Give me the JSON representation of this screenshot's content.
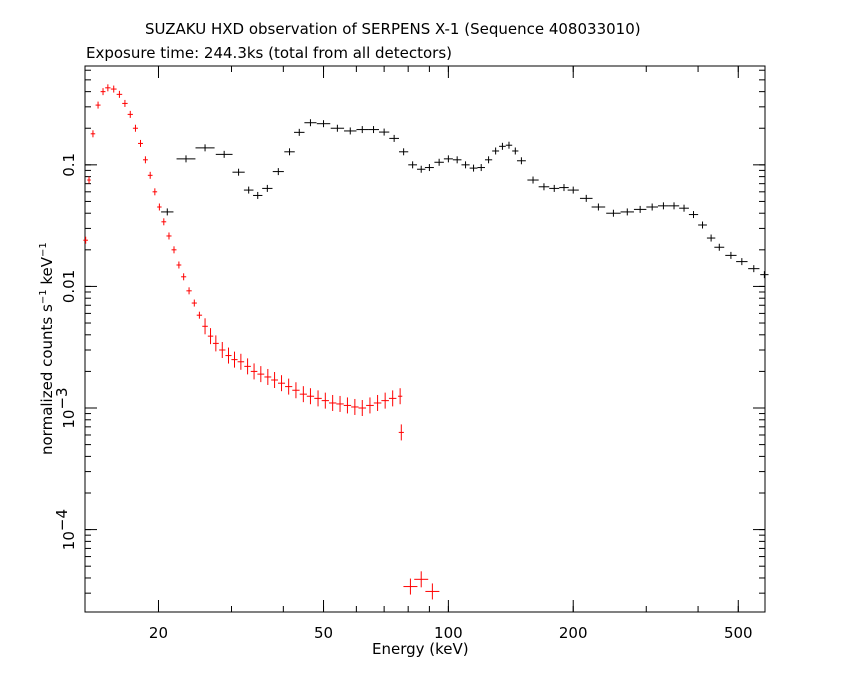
{
  "chart_data": {
    "type": "scatter",
    "title": "SUZAKU HXD observation of SERPENS X-1 (Sequence 408033010)",
    "subtitle": "Exposure time: 244.3ks (total from all detectors)",
    "xlabel": "Energy (keV)",
    "ylabel": {
      "prefix": "normalized counts s",
      "mid": " keV",
      "exp": "−1"
    },
    "xscale": "log",
    "yscale": "log",
    "xlim": [
      13.3,
      580
    ],
    "ylim": [
      2.1e-05,
      0.65
    ],
    "grid": false,
    "legend": "none",
    "x_ticks": [
      {
        "value": 20,
        "label": "20"
      },
      {
        "value": 50,
        "label": "50"
      },
      {
        "value": 100,
        "label": "100"
      },
      {
        "value": 200,
        "label": "200"
      },
      {
        "value": 500,
        "label": "500"
      }
    ],
    "y_ticks": [
      {
        "value": 0.0001,
        "label": "10",
        "exp": "−4"
      },
      {
        "value": 0.001,
        "label": "10",
        "exp": "−3"
      },
      {
        "value": 0.01,
        "label": "0.01",
        "exp": ""
      },
      {
        "value": 0.1,
        "label": "0.1",
        "exp": ""
      }
    ],
    "series": [
      {
        "color": "#ff0000",
        "points": [
          [
            13.35,
            0.024
          ],
          [
            13.6,
            0.075
          ],
          [
            13.9,
            0.18
          ],
          [
            14.3,
            0.31
          ],
          [
            14.7,
            0.4
          ],
          [
            15.1,
            0.43
          ],
          [
            15.6,
            0.42
          ],
          [
            16.1,
            0.38
          ],
          [
            16.6,
            0.32
          ],
          [
            17.1,
            0.26
          ],
          [
            17.6,
            0.2
          ],
          [
            18.1,
            0.15
          ],
          [
            18.6,
            0.11
          ],
          [
            19.1,
            0.082
          ],
          [
            19.6,
            0.06
          ],
          [
            20.1,
            0.045
          ],
          [
            20.6,
            0.034
          ],
          [
            21.2,
            0.026
          ],
          [
            21.8,
            0.02
          ],
          [
            22.4,
            0.015
          ],
          [
            23.0,
            0.012
          ],
          [
            23.7,
            0.0092
          ],
          [
            24.4,
            0.0073
          ],
          [
            25.1,
            0.0058
          ],
          [
            25.9,
            0.0047
          ],
          [
            26.7,
            0.0039
          ],
          [
            27.5,
            0.0034
          ],
          [
            28.5,
            0.003
          ],
          [
            29.5,
            0.0027
          ],
          [
            30.5,
            0.0025
          ],
          [
            31.6,
            0.0024
          ],
          [
            32.8,
            0.0022
          ],
          [
            34.0,
            0.002
          ],
          [
            35.3,
            0.0019
          ],
          [
            36.7,
            0.0018
          ],
          [
            38.1,
            0.0017
          ],
          [
            39.6,
            0.0016
          ],
          [
            41.2,
            0.0015
          ],
          [
            42.9,
            0.0014
          ],
          [
            44.7,
            0.0013
          ],
          [
            46.5,
            0.00125
          ],
          [
            48.5,
            0.0012
          ],
          [
            50.5,
            0.00115
          ],
          [
            52.6,
            0.0011
          ],
          [
            54.8,
            0.00108
          ],
          [
            57.1,
            0.00105
          ],
          [
            59.5,
            0.00102
          ],
          [
            62.0,
            0.001
          ],
          [
            64.7,
            0.00105
          ],
          [
            67.5,
            0.0011
          ],
          [
            70.4,
            0.00115
          ],
          [
            73.4,
            0.0012
          ],
          [
            76.5,
            0.00125
          ],
          [
            77.0,
            0.00063
          ],
          [
            81.0,
            3.4e-05
          ],
          [
            86.0,
            3.9e-05
          ],
          [
            91.5,
            3.1e-05
          ]
        ]
      },
      {
        "color": "#000000",
        "points": [
          [
            21.0,
            0.041
          ],
          [
            23.3,
            0.112
          ],
          [
            25.9,
            0.138
          ],
          [
            28.8,
            0.122
          ],
          [
            31.2,
            0.087
          ],
          [
            33.0,
            0.062
          ],
          [
            34.7,
            0.056
          ],
          [
            36.6,
            0.064
          ],
          [
            38.9,
            0.088
          ],
          [
            41.4,
            0.128
          ],
          [
            43.7,
            0.185
          ],
          [
            46.5,
            0.222
          ],
          [
            50.0,
            0.218
          ],
          [
            54.0,
            0.2
          ],
          [
            58.0,
            0.19
          ],
          [
            62.0,
            0.195
          ],
          [
            66.0,
            0.195
          ],
          [
            70.0,
            0.186
          ],
          [
            74.0,
            0.165
          ],
          [
            78.0,
            0.128
          ],
          [
            82.0,
            0.1
          ],
          [
            86.0,
            0.092
          ],
          [
            90.0,
            0.095
          ],
          [
            95.0,
            0.105
          ],
          [
            100.0,
            0.112
          ],
          [
            105.0,
            0.11
          ],
          [
            110.0,
            0.1
          ],
          [
            115.0,
            0.094
          ],
          [
            120.0,
            0.095
          ],
          [
            125.0,
            0.11
          ],
          [
            130.0,
            0.13
          ],
          [
            135.0,
            0.142
          ],
          [
            140.0,
            0.145
          ],
          [
            145.0,
            0.13
          ],
          [
            150.0,
            0.108
          ],
          [
            160.0,
            0.075
          ],
          [
            170.0,
            0.066
          ],
          [
            180.0,
            0.064
          ],
          [
            190.0,
            0.065
          ],
          [
            200.0,
            0.062
          ],
          [
            215.0,
            0.053
          ],
          [
            230.0,
            0.045
          ],
          [
            250.0,
            0.04
          ],
          [
            270.0,
            0.041
          ],
          [
            290.0,
            0.043
          ],
          [
            310.0,
            0.045
          ],
          [
            330.0,
            0.046
          ],
          [
            350.0,
            0.046
          ],
          [
            370.0,
            0.044
          ],
          [
            390.0,
            0.039
          ],
          [
            410.0,
            0.032
          ],
          [
            430.0,
            0.025
          ],
          [
            450.0,
            0.021
          ],
          [
            480.0,
            0.018
          ],
          [
            510.0,
            0.016
          ],
          [
            545.0,
            0.014
          ],
          [
            578.0,
            0.0125
          ]
        ]
      }
    ]
  }
}
